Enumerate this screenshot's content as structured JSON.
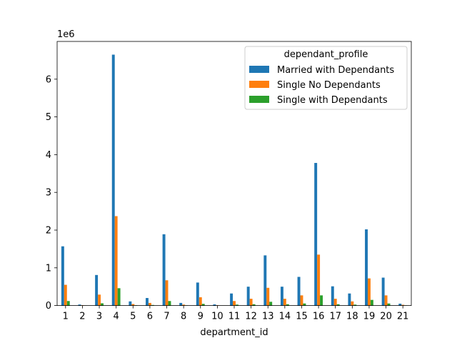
{
  "chart_data": {
    "type": "bar",
    "xlabel": "department_id",
    "ylabel": "",
    "y_offset_label": "1e6",
    "ylim": [
      0,
      7000000
    ],
    "yticks": [
      0,
      1,
      2,
      3,
      4,
      5,
      6
    ],
    "grid": false,
    "legend": {
      "title": "dependant_profile",
      "placement": "upper right"
    },
    "categories": [
      "1",
      "2",
      "3",
      "4",
      "5",
      "6",
      "7",
      "8",
      "9",
      "10",
      "11",
      "12",
      "13",
      "14",
      "15",
      "16",
      "17",
      "18",
      "19",
      "20",
      "21"
    ],
    "series": [
      {
        "name": "Married with Dependants",
        "color": "#1f77b4",
        "values": [
          1570000,
          27000,
          810000,
          6650000,
          110000,
          200000,
          1890000,
          70000,
          610000,
          30000,
          320000,
          500000,
          1330000,
          500000,
          760000,
          3780000,
          510000,
          320000,
          2020000,
          740000,
          50000
        ]
      },
      {
        "name": "Single No Dependants",
        "color": "#ff7f0e",
        "values": [
          550000,
          10000,
          290000,
          2370000,
          40000,
          70000,
          670000,
          25000,
          220000,
          10000,
          120000,
          180000,
          470000,
          180000,
          270000,
          1350000,
          180000,
          110000,
          720000,
          270000,
          20000
        ]
      },
      {
        "name": "Single with Dependants",
        "color": "#2ca02c",
        "values": [
          120000,
          3000,
          60000,
          460000,
          8000,
          15000,
          120000,
          5000,
          45000,
          2000,
          25000,
          35000,
          100000,
          35000,
          55000,
          270000,
          35000,
          25000,
          150000,
          55000,
          4000
        ]
      }
    ]
  }
}
